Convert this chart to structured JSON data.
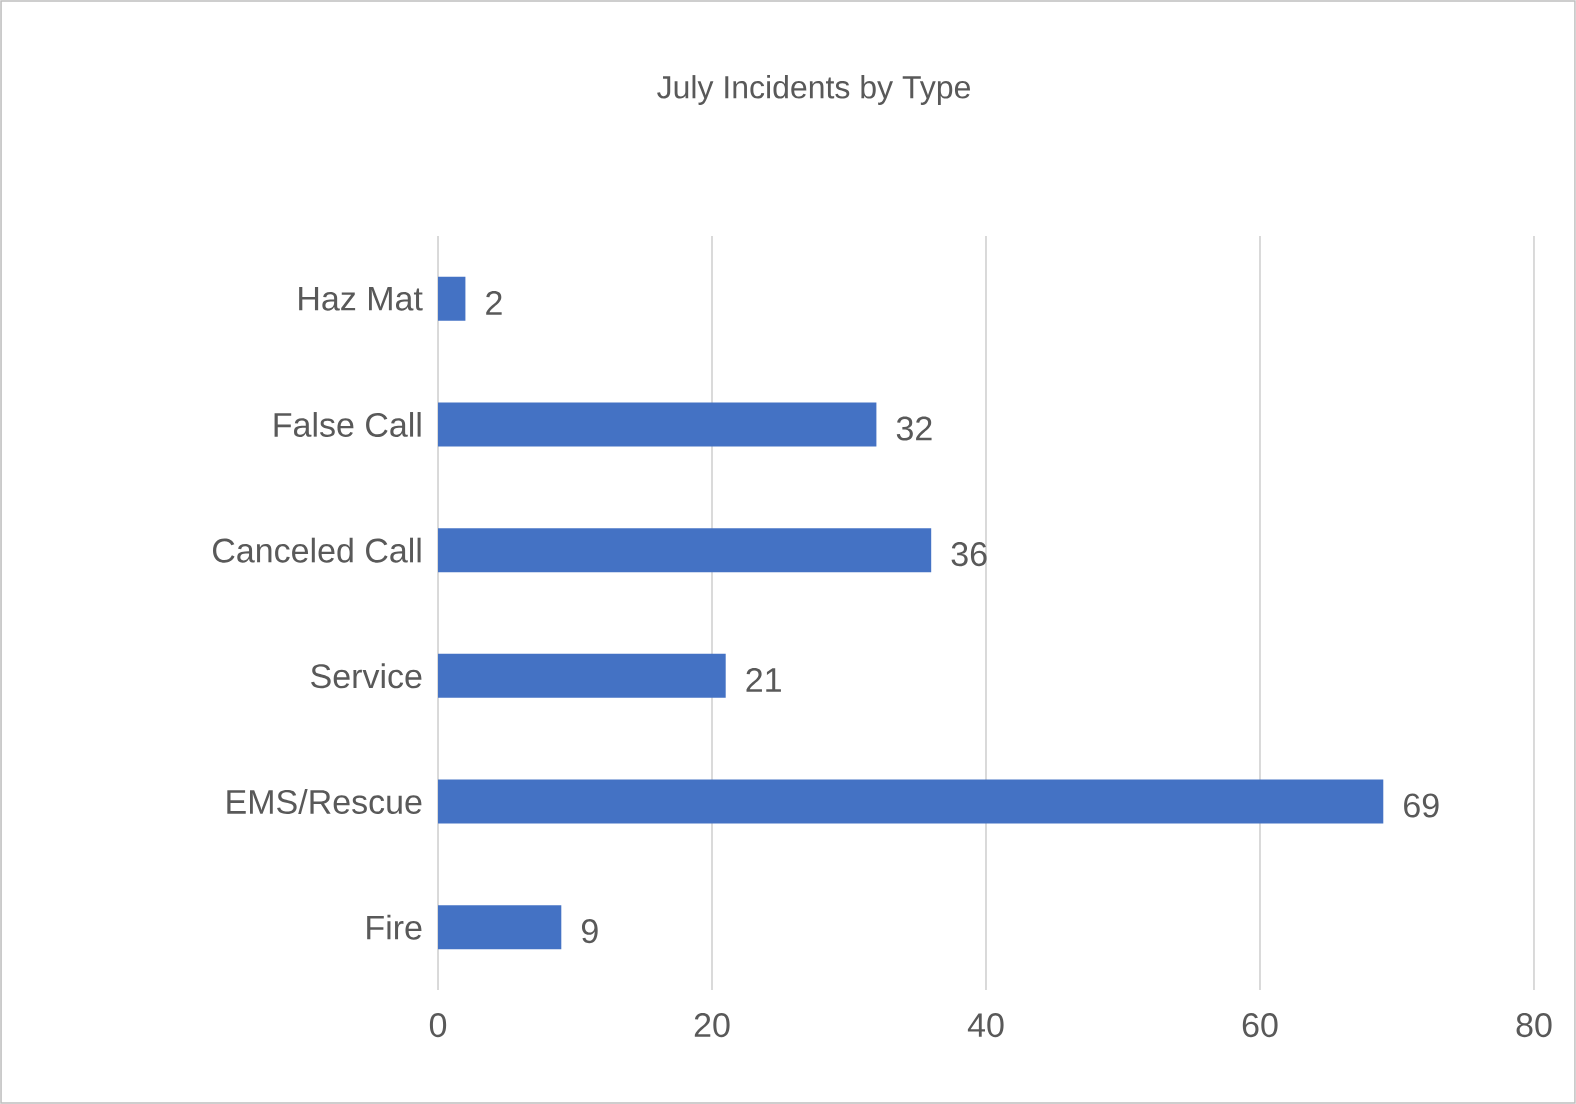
{
  "chart_data": {
    "type": "bar",
    "orientation": "horizontal",
    "title": "July Incidents by Type",
    "categories": [
      "Haz Mat",
      "False Call",
      "Canceled Call",
      "Service",
      "EMS/Rescue",
      "Fire"
    ],
    "values": [
      2,
      32,
      36,
      21,
      69,
      9
    ],
    "color": "#4472c4",
    "xlim": [
      0,
      80
    ],
    "xticks": [
      0,
      20,
      40,
      60,
      80
    ],
    "grid": "x",
    "data_labels": true
  }
}
